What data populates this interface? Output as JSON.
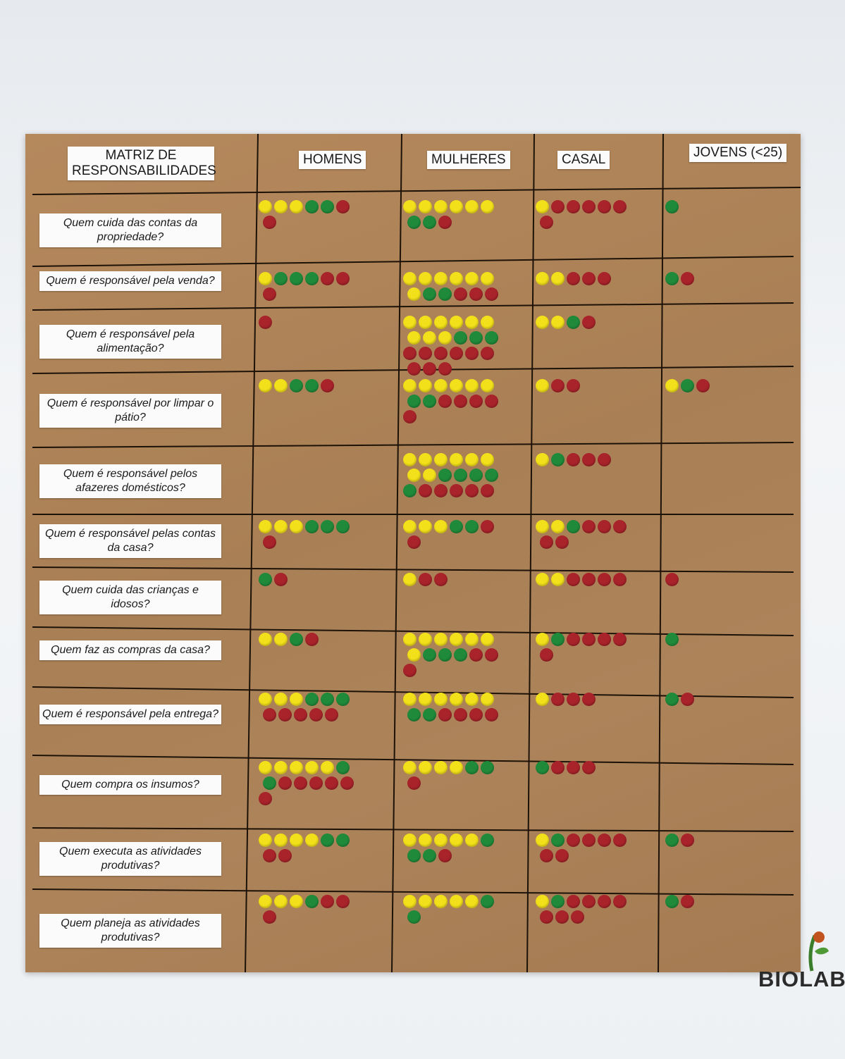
{
  "colors": {
    "yellow": "#f2e01a",
    "red": "#a8232a",
    "green": "#1f8a3a"
  },
  "headers": {
    "matrix": "MATRIZ DE RESPONSABILIDADES",
    "homens": "HOMENS",
    "mulheres": "MULHERES",
    "casal": "CASAL",
    "jovens": "JOVENS (<25)"
  },
  "rows": [
    {
      "label": "Quem cuida das contas da propriedade?",
      "homens": {
        "yellow": 3,
        "green": 2,
        "red": 2
      },
      "mulheres": {
        "yellow": 6,
        "green": 2,
        "red": 1
      },
      "casal": {
        "yellow": 1,
        "green": 0,
        "red": 6
      },
      "jovens": {
        "yellow": 0,
        "green": 1,
        "red": 0
      }
    },
    {
      "label": "Quem é responsável pela venda?",
      "homens": {
        "yellow": 1,
        "green": 3,
        "red": 3
      },
      "mulheres": {
        "yellow": 7,
        "green": 2,
        "red": 3
      },
      "casal": {
        "yellow": 2,
        "green": 0,
        "red": 3
      },
      "jovens": {
        "yellow": 0,
        "green": 1,
        "red": 1
      }
    },
    {
      "label": "Quem é responsável pela alimentação?",
      "homens": {
        "yellow": 0,
        "green": 0,
        "red": 1
      },
      "mulheres": {
        "yellow": 9,
        "green": 3,
        "red": 9
      },
      "casal": {
        "yellow": 2,
        "green": 1,
        "red": 1
      },
      "jovens": {
        "yellow": 0,
        "green": 0,
        "red": 0
      }
    },
    {
      "label": "Quem é responsável por limpar o pátio?",
      "homens": {
        "yellow": 2,
        "green": 2,
        "red": 1
      },
      "mulheres": {
        "yellow": 6,
        "green": 2,
        "red": 5
      },
      "casal": {
        "yellow": 1,
        "green": 0,
        "red": 2
      },
      "jovens": {
        "yellow": 1,
        "green": 1,
        "red": 1
      }
    },
    {
      "label": "Quem é responsável pelos afazeres domésticos?",
      "homens": {
        "yellow": 0,
        "green": 0,
        "red": 0
      },
      "mulheres": {
        "yellow": 8,
        "green": 5,
        "red": 5
      },
      "casal": {
        "yellow": 1,
        "green": 1,
        "red": 3
      },
      "jovens": {
        "yellow": 0,
        "green": 0,
        "red": 0
      }
    },
    {
      "label": "Quem é responsável pelas contas da casa?",
      "homens": {
        "yellow": 3,
        "green": 3,
        "red": 1
      },
      "mulheres": {
        "yellow": 3,
        "green": 2,
        "red": 2
      },
      "casal": {
        "yellow": 2,
        "green": 1,
        "red": 5
      },
      "jovens": {
        "yellow": 0,
        "green": 0,
        "red": 0
      }
    },
    {
      "label": "Quem cuida das crianças e idosos?",
      "homens": {
        "yellow": 0,
        "green": 1,
        "red": 1
      },
      "mulheres": {
        "yellow": 1,
        "green": 0,
        "red": 2
      },
      "casal": {
        "yellow": 2,
        "green": 0,
        "red": 4
      },
      "jovens": {
        "yellow": 0,
        "green": 0,
        "red": 1
      }
    },
    {
      "label": "Quem faz as compras da casa?",
      "homens": {
        "yellow": 2,
        "green": 1,
        "red": 1
      },
      "mulheres": {
        "yellow": 7,
        "green": 3,
        "red": 3
      },
      "casal": {
        "yellow": 1,
        "green": 1,
        "red": 5
      },
      "jovens": {
        "yellow": 0,
        "green": 1,
        "red": 0
      }
    },
    {
      "label": "Quem é responsável pela entrega?",
      "homens": {
        "yellow": 3,
        "green": 3,
        "red": 5
      },
      "mulheres": {
        "yellow": 6,
        "green": 2,
        "red": 4
      },
      "casal": {
        "yellow": 1,
        "green": 0,
        "red": 3
      },
      "jovens": {
        "yellow": 0,
        "green": 1,
        "red": 1
      }
    },
    {
      "label": "Quem compra os insumos?",
      "homens": {
        "yellow": 5,
        "green": 2,
        "red": 6
      },
      "mulheres": {
        "yellow": 4,
        "green": 2,
        "red": 1
      },
      "casal": {
        "yellow": 0,
        "green": 1,
        "red": 3
      },
      "jovens": {
        "yellow": 0,
        "green": 0,
        "red": 0
      }
    },
    {
      "label": "Quem executa as atividades produtivas?",
      "homens": {
        "yellow": 4,
        "green": 2,
        "red": 2
      },
      "mulheres": {
        "yellow": 5,
        "green": 3,
        "red": 1
      },
      "casal": {
        "yellow": 1,
        "green": 1,
        "red": 6
      },
      "jovens": {
        "yellow": 0,
        "green": 1,
        "red": 1
      }
    },
    {
      "label": "Quem planeja as atividades produtivas?",
      "homens": {
        "yellow": 3,
        "green": 1,
        "red": 3
      },
      "mulheres": {
        "yellow": 5,
        "green": 2,
        "red": 0
      },
      "casal": {
        "yellow": 1,
        "green": 1,
        "red": 7
      },
      "jovens": {
        "yellow": 0,
        "green": 1,
        "red": 1
      }
    }
  ],
  "logo": {
    "text": "BIOLABOR",
    "icon": "biolabor-plant-logo"
  }
}
